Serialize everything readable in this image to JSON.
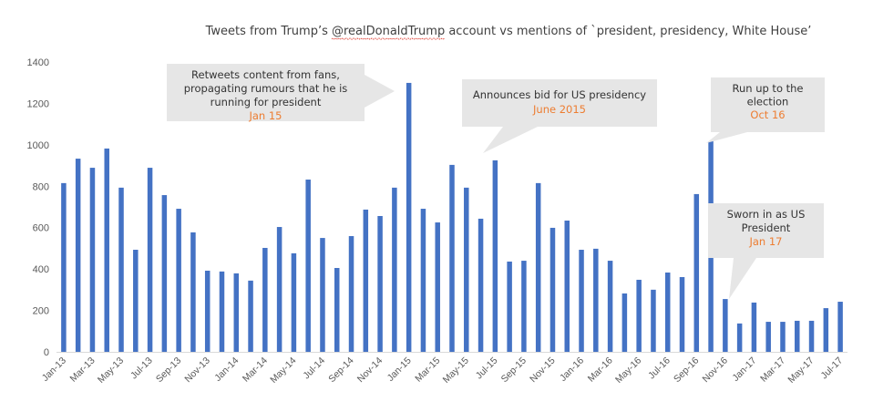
{
  "chart_data": {
    "type": "bar",
    "title": "Tweets from Trump’s @realDonaldTrump account vs mentions of `president, presidency, White House’",
    "title_underlined_word": "@realDonaldTrump",
    "xlabel": "",
    "ylabel": "",
    "ylim": [
      0,
      1400
    ],
    "yticks": [
      "0",
      "200",
      "400",
      "600",
      "800",
      "1000",
      "1200",
      "1400"
    ],
    "grid": false,
    "legend": "none",
    "bar_color": "#4472c4",
    "categories": [
      "Jan-13",
      "Feb-13",
      "Mar-13",
      "Apr-13",
      "May-13",
      "Jun-13",
      "Jul-13",
      "Aug-13",
      "Sep-13",
      "Oct-13",
      "Nov-13",
      "Dec-13",
      "Jan-14",
      "Feb-14",
      "Mar-14",
      "Apr-14",
      "May-14",
      "Jun-14",
      "Jul-14",
      "Aug-14",
      "Sep-14",
      "Oct-14",
      "Nov-14",
      "Dec-14",
      "Jan-15",
      "Feb-15",
      "Mar-15",
      "Apr-15",
      "May-15",
      "Jun-15",
      "Jul-15",
      "Aug-15",
      "Sep-15",
      "Oct-15",
      "Nov-15",
      "Dec-15",
      "Jan-16",
      "Feb-16",
      "Mar-16",
      "Apr-16",
      "May-16",
      "Jun-16",
      "Jul-16",
      "Aug-16",
      "Sep-16",
      "Oct-16",
      "Nov-16",
      "Dec-16",
      "Jan-17",
      "Feb-17",
      "Mar-17",
      "Apr-17",
      "May-17",
      "Jun-17",
      "Jul-17"
    ],
    "xtick_labels": [
      "Jan-13",
      "Mar-13",
      "May-13",
      "Jul-13",
      "Sep-13",
      "Nov-13",
      "Jan-14",
      "Mar-14",
      "May-14",
      "Jul-14",
      "Sep-14",
      "Nov-14",
      "Jan-15",
      "Mar-15",
      "May-15",
      "Jul-15",
      "Sep-15",
      "Nov-15",
      "Jan-16",
      "Mar-16",
      "May-16",
      "Jul-16",
      "Sep-16",
      "Nov-16",
      "Jan-17",
      "Mar-17",
      "May-17",
      "Jul-17"
    ],
    "values": [
      815,
      933,
      889,
      982,
      793,
      493,
      889,
      757,
      691,
      577,
      392,
      388,
      379,
      344,
      502,
      603,
      476,
      832,
      550,
      405,
      559,
      687,
      656,
      793,
      1299,
      691,
      625,
      903,
      793,
      643,
      925,
      436,
      440,
      815,
      599,
      634,
      493,
      498,
      440,
      282,
      348,
      300,
      383,
      361,
      762,
      1017,
      255,
      137,
      238,
      145,
      145,
      150,
      150,
      211,
      242
    ],
    "annotations": [
      {
        "lines": [
          "Retweets content from fans,",
          "propagating rumours that he is",
          "running for president"
        ],
        "date": "Jan 15",
        "points_to": "Jan-15"
      },
      {
        "lines": [
          "Announces bid for US presidency"
        ],
        "date": "June 2015",
        "points_to": "Jun-15"
      },
      {
        "lines": [
          "Run up to the",
          "election"
        ],
        "date": "Oct 16",
        "points_to": "Oct-16"
      },
      {
        "lines": [
          "Sworn in as US",
          "President"
        ],
        "date": "Jan 17",
        "points_to": "Jan-17"
      }
    ],
    "annotation_bg": "#e6e6e6",
    "annotation_date_color": "#ed7d31"
  }
}
